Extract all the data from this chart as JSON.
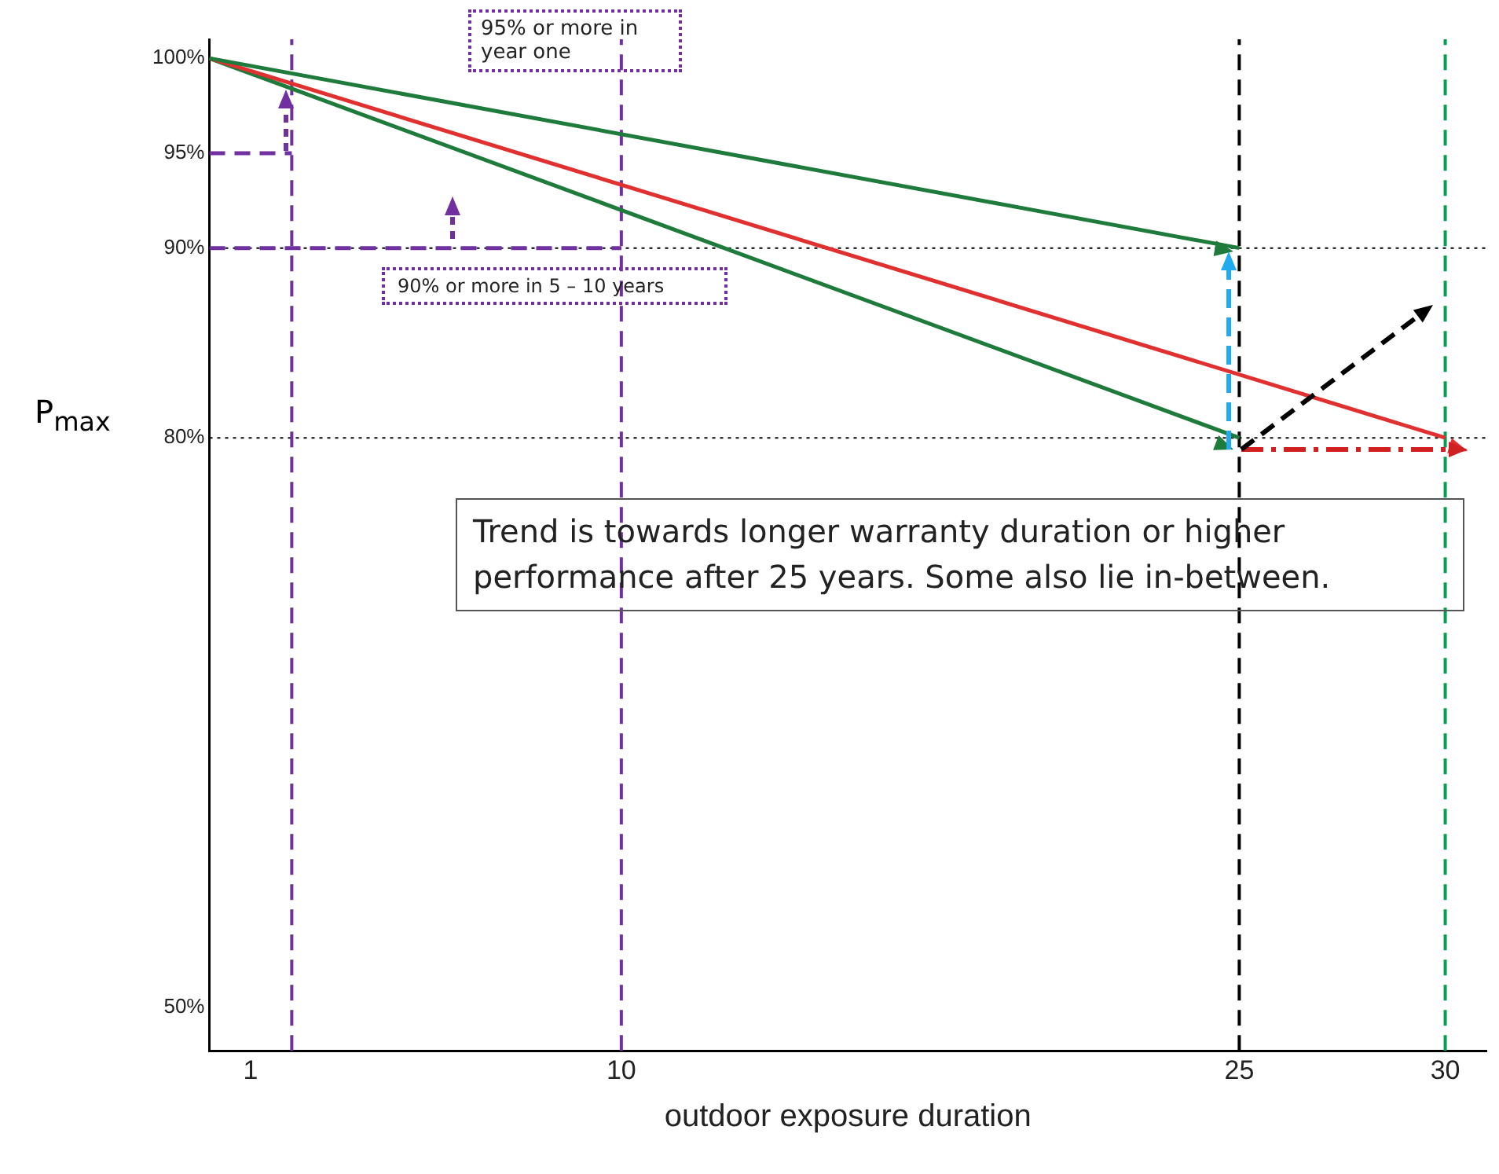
{
  "chart_data": {
    "type": "line",
    "xlabel": "outdoor exposure duration",
    "ylabel": "P$_{max}$",
    "xlim": [
      0,
      31
    ],
    "xticks": [
      1,
      10,
      25,
      30
    ],
    "ylim": [
      47.7,
      101
    ],
    "yticks": [
      {
        "value": 50,
        "label": "50%"
      },
      {
        "value": 80,
        "label": "80%"
      },
      {
        "value": 90,
        "label": "90%"
      },
      {
        "value": 95,
        "label": "95%"
      },
      {
        "value": 100,
        "label": "100%"
      }
    ],
    "grid": false,
    "legend": false,
    "series": [
      {
        "color": "#1e7b3c",
        "x": [
          0,
          25
        ],
        "values": [
          100,
          90
        ],
        "line_style": "solid"
      },
      {
        "color": "#e03030",
        "x": [
          0,
          30
        ],
        "values": [
          100,
          80
        ],
        "line_style": "solid"
      },
      {
        "color": "#1e7b3c",
        "x": [
          0,
          25
        ],
        "values": [
          100,
          80
        ],
        "line_style": "solid"
      },
      {
        "color": "#7030a0",
        "x": [
          0,
          2
        ],
        "values": [
          95,
          95
        ],
        "line_style": "dashed"
      },
      {
        "color": "#7030a0",
        "x": [
          0,
          10
        ],
        "values": [
          90,
          90
        ],
        "line_style": "dashed"
      }
    ],
    "ref_lines": [
      {
        "axis": "y",
        "value": 90,
        "color": "#000000",
        "line_style": "dotted"
      },
      {
        "axis": "y",
        "value": 80,
        "color": "#000000",
        "line_style": "dotted"
      },
      {
        "axis": "x",
        "value": 2,
        "color": "#7030a0",
        "line_style": "dashed"
      },
      {
        "axis": "x",
        "value": 10,
        "color": "#7030a0",
        "line_style": "dashed"
      },
      {
        "axis": "x",
        "value": 25,
        "color": "#000000",
        "line_style": "dashed"
      },
      {
        "axis": "x",
        "value": 30,
        "color": "#00a050",
        "line_style": "dashed"
      }
    ],
    "annotations": [
      "95% or more in year one",
      "90% or more in 5 – 10 years",
      "Trend is towards longer warranty duration or higher performance after 25 years. Some also lie in-between."
    ]
  }
}
